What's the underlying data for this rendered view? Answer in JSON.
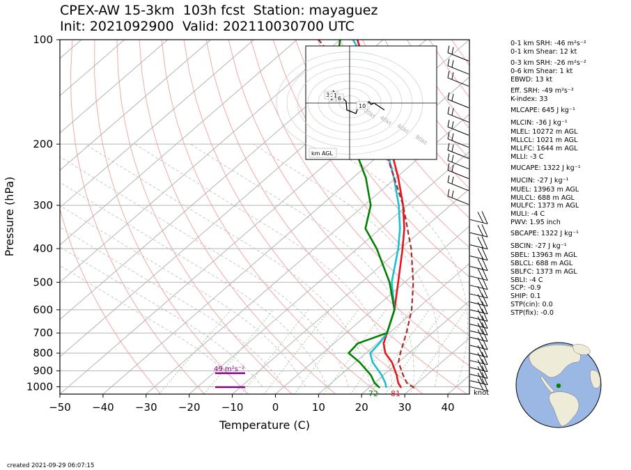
{
  "chart_data": {
    "type": "skewt",
    "title_line1": "CPEX-AW 15-3km  103h fcst  Station: mayaguez",
    "title_line2": "Init: 2021092900  Valid: 202110030700 UTC",
    "xlabel": "Temperature (C)",
    "ylabel": "Pressure (hPa)",
    "xlim": [
      -50,
      45
    ],
    "ylim": [
      1050,
      100
    ],
    "log_pressure_axis": true,
    "x_ticks": [
      "−50",
      "−40",
      "−30",
      "−20",
      "−10",
      "0",
      "10",
      "20",
      "30",
      "40"
    ],
    "y_ticks": [
      "100",
      "200",
      "300",
      "400",
      "500",
      "600",
      "700",
      "800",
      "900",
      "1000"
    ],
    "grid": true,
    "series": [
      {
        "color": "#e6141c",
        "points": [
          [
            1007,
            27.5
          ],
          [
            975,
            25.5
          ],
          [
            925,
            23.0
          ],
          [
            850,
            18.5
          ],
          [
            800,
            14.5
          ],
          [
            750,
            11.5
          ],
          [
            700,
            9.5
          ],
          [
            600,
            5.0
          ],
          [
            500,
            -1.5
          ],
          [
            400,
            -9.5
          ],
          [
            350,
            -14.5
          ],
          [
            300,
            -21.0
          ],
          [
            250,
            -29.5
          ],
          [
            200,
            -40.5
          ],
          [
            150,
            -55.0
          ],
          [
            100,
            -76.0
          ]
        ]
      },
      {
        "color": "#19bfcf",
        "points": [
          [
            1007,
            24.0
          ],
          [
            975,
            22.5
          ],
          [
            925,
            19.5
          ],
          [
            850,
            14.0
          ],
          [
            800,
            11.0
          ],
          [
            750,
            10.5
          ],
          [
            700,
            9.5
          ],
          [
            600,
            5.0
          ],
          [
            500,
            -3.0
          ],
          [
            400,
            -10.5
          ],
          [
            350,
            -15.5
          ],
          [
            300,
            -22.0
          ],
          [
            250,
            -30.5
          ],
          [
            200,
            -41.5
          ],
          [
            150,
            -56.0
          ],
          [
            125,
            -63.5
          ],
          [
            100,
            -77.0
          ]
        ]
      },
      {
        "color": "#008000",
        "points": [
          [
            1007,
            22.5
          ],
          [
            975,
            20.0
          ],
          [
            925,
            17.0
          ],
          [
            850,
            11.0
          ],
          [
            800,
            6.0
          ],
          [
            750,
            5.5
          ],
          [
            700,
            9.5
          ],
          [
            600,
            5.0
          ],
          [
            500,
            -3.5
          ],
          [
            400,
            -15.5
          ],
          [
            350,
            -23.5
          ],
          [
            300,
            -28.5
          ],
          [
            250,
            -37.0
          ],
          [
            200,
            -49.0
          ],
          [
            150,
            -66.0
          ],
          [
            125,
            -72.0
          ],
          [
            100,
            -80.0
          ]
        ]
      },
      {
        "color": "#a52a2a",
        "dashed": true,
        "points": [
          [
            1007,
            30.5
          ],
          [
            975,
            27.5
          ],
          [
            925,
            24.5
          ],
          [
            850,
            20.0
          ],
          [
            800,
            18.0
          ],
          [
            700,
            14.0
          ],
          [
            600,
            9.0
          ],
          [
            500,
            2.0
          ],
          [
            400,
            -7.5
          ],
          [
            300,
            -21.0
          ],
          [
            200,
            -42.0
          ],
          [
            150,
            -57.0
          ],
          [
            100,
            -85.0
          ]
        ]
      }
    ],
    "annotations": {
      "surface_temp_f": "81",
      "surface_dewpoint_f": "72",
      "srh_label": "49 m²s⁻²",
      "wind_unit": "knot"
    },
    "hodograph": {
      "height_labels": [
        "3",
        "2",
        "1",
        "6",
        "10"
      ],
      "ring_labels": [
        "20kt",
        "40kt",
        "60kt",
        "80kt"
      ],
      "corner_label": "km AGL"
    },
    "wind_barbs_pressure": [
      110,
      120,
      130,
      150,
      165,
      180,
      195,
      210,
      225,
      240,
      260,
      285,
      330,
      360,
      390,
      420,
      450,
      480,
      510,
      540,
      570,
      600,
      630,
      660,
      690,
      720,
      760,
      800,
      840,
      880,
      920,
      960,
      1000
    ]
  },
  "indices": [
    "0-1 km SRH: -46 m²s⁻²",
    "0-1 km Shear: 12 kt",
    "0-3 km SRH: -26 m²s⁻²",
    "0-6 km Shear: 1 kt",
    "EBWD: 13 kt",
    "Eff. SRH: -49 m²s⁻²",
    "K-index: 33",
    "MLCAPE: 645 J kg⁻¹",
    "MLCIN: -36 J kg⁻¹",
    "MLEL: 10272 m AGL",
    "MLLCL: 1021 m AGL",
    "MLLFC: 1644 m AGL",
    "MLLI: -3 C",
    "MUCAPE: 1322 J kg⁻¹",
    "MUCIN: -27 J kg⁻¹",
    "MUEL: 13963 m AGL",
    "MULCL: 688 m AGL",
    "MULFC: 1373 m AGL",
    "MULI: -4 C",
    "PWV: 1.95 inch",
    "SBCAPE: 1322 J kg⁻¹",
    "SBCIN: -27 J kg⁻¹",
    "SBEL: 13963 m AGL",
    "SBLCL: 688 m AGL",
    "SBLFC: 1373 m AGL",
    "SBLI: -4 C",
    "SCP: -0.9",
    "SHIP: 0.1",
    "STP(cin): 0.0",
    "STP(fix): -0.0"
  ],
  "footer": "created 2021-09-29 06:07:15",
  "colors": {
    "land": "#efebd9",
    "ocean": "#9ab8e3",
    "station": "#008000",
    "srh": "#800080"
  }
}
